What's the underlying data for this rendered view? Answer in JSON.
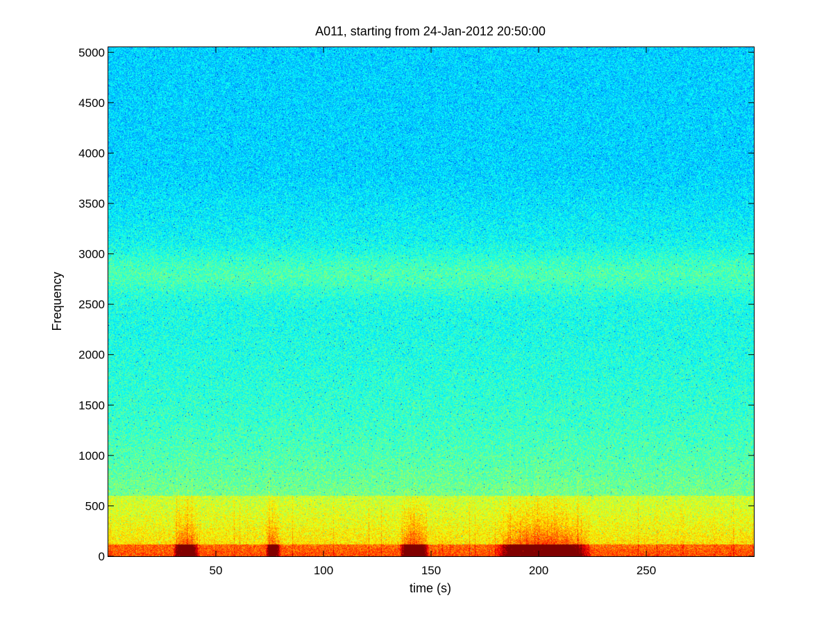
{
  "chart_data": {
    "type": "heatmap",
    "title": "A011, starting from 24-Jan-2012 20:50:00",
    "xlabel": "time (s)",
    "ylabel": "Frequency",
    "xlim": [
      0,
      300
    ],
    "ylim": [
      0,
      5050
    ],
    "x_ticks": [
      50,
      100,
      150,
      200,
      250
    ],
    "y_ticks": [
      0,
      500,
      1000,
      1500,
      2000,
      2500,
      3000,
      3500,
      4000,
      4500,
      5000
    ],
    "colormap": "jet",
    "grid": false,
    "legend": "none",
    "low_frequency_bursts": [
      {
        "time_start": 32,
        "time_end": 40,
        "intensity": 0.9
      },
      {
        "time_start": 75,
        "time_end": 78,
        "intensity": 0.75
      },
      {
        "time_start": 137,
        "time_end": 147,
        "intensity": 0.95
      },
      {
        "time_start": 181,
        "time_end": 223,
        "intensity": 1.0
      }
    ],
    "elevated_band_hz": [
      2600,
      3000
    ]
  }
}
